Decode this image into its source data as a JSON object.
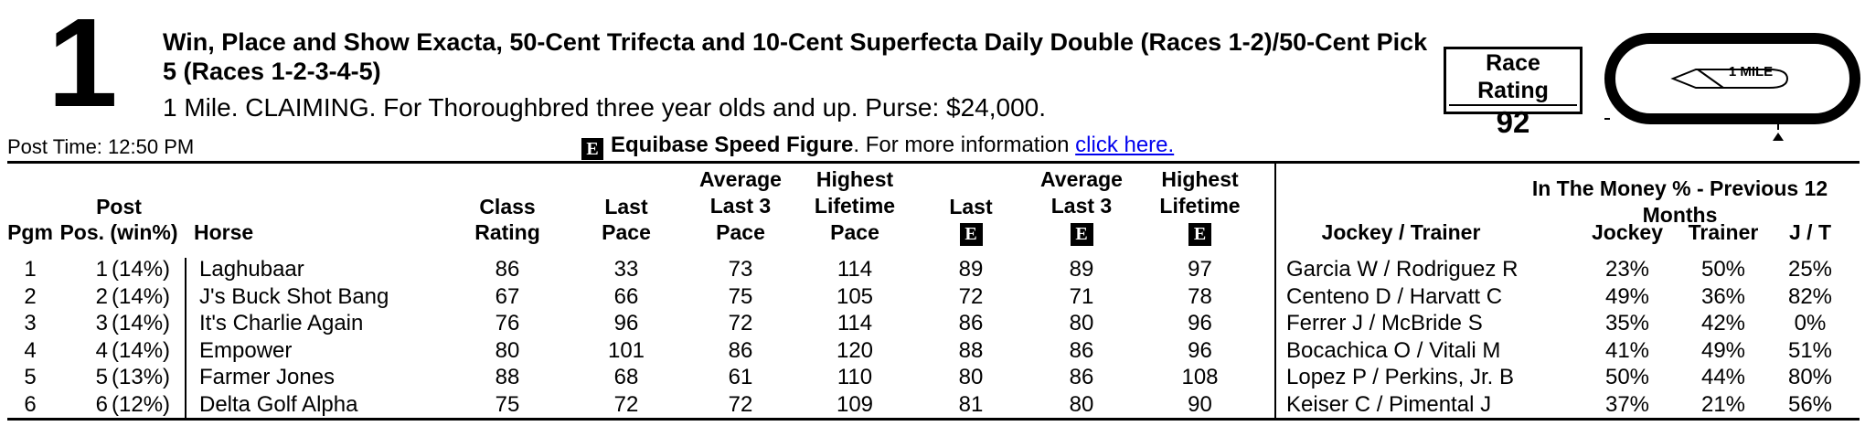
{
  "race": {
    "number": "1",
    "title": "Win, Place and Show Exacta, 50-Cent Trifecta and 10-Cent Superfecta Daily Double (Races 1-2)/50-Cent Pick 5 (Races 1-2-3-4-5)",
    "conditions": "1 Mile. CLAIMING. For Thoroughbred three year olds and up. Purse: $24,000.",
    "post_time": "Post Time: 12:50 PM",
    "rating_label": "Race Rating",
    "rating_value": "92",
    "track_label": "1 MILE"
  },
  "speed_figure": {
    "icon": "E",
    "title": "Equibase Speed Figure",
    "text": ". For more information ",
    "link": "click here."
  },
  "headers": {
    "pgm": "Pgm",
    "post_line1": "Post",
    "post_line2": "Pos. (win%)",
    "horse": "Horse",
    "class_line1": "Class",
    "class_line2": "Rating",
    "lastpace_line1": "Last",
    "lastpace_line2": "Pace",
    "avgpace_line1": "Average",
    "avgpace_line2": "Last 3",
    "avgpace_line3": "Pace",
    "highpace_line1": "Highest",
    "highpace_line2": "Lifetime",
    "highpace_line3": "Pace",
    "laste_line1": "Last",
    "avge_line1": "Average",
    "avge_line2": "Last 3",
    "highe_line1": "Highest",
    "highe_line2": "Lifetime",
    "e_icon": "E",
    "itm": "In The Money % - Previous 12 Months",
    "jockey_trainer": "Jockey / Trainer",
    "jockey": "Jockey",
    "trainer": "Trainer",
    "jt": "J / T"
  },
  "entries": [
    {
      "pgm": "1",
      "pp": "1",
      "win": "(14%)",
      "horse": "Laghubaar",
      "class": "86",
      "last_pace": "33",
      "avg_pace": "73",
      "high_pace": "114",
      "last_e": "89",
      "avg_e": "89",
      "high_e": "97",
      "jt": "Garcia W / Rodriguez R",
      "jockey_pct": "23%",
      "trainer_pct": "50%",
      "jt_pct": "25%"
    },
    {
      "pgm": "2",
      "pp": "2",
      "win": "(14%)",
      "horse": "J's Buck Shot Bang",
      "class": "67",
      "last_pace": "66",
      "avg_pace": "75",
      "high_pace": "105",
      "last_e": "72",
      "avg_e": "71",
      "high_e": "78",
      "jt": "Centeno D / Harvatt C",
      "jockey_pct": "49%",
      "trainer_pct": "36%",
      "jt_pct": "82%"
    },
    {
      "pgm": "3",
      "pp": "3",
      "win": "(14%)",
      "horse": "It's Charlie Again",
      "class": "76",
      "last_pace": "96",
      "avg_pace": "72",
      "high_pace": "114",
      "last_e": "86",
      "avg_e": "80",
      "high_e": "96",
      "jt": "Ferrer J / McBride S",
      "jockey_pct": "35%",
      "trainer_pct": "42%",
      "jt_pct": "0%"
    },
    {
      "pgm": "4",
      "pp": "4",
      "win": "(14%)",
      "horse": "Empower",
      "class": "80",
      "last_pace": "101",
      "avg_pace": "86",
      "high_pace": "120",
      "last_e": "88",
      "avg_e": "86",
      "high_e": "96",
      "jt": "Bocachica O / Vitali M",
      "jockey_pct": "41%",
      "trainer_pct": "49%",
      "jt_pct": "51%"
    },
    {
      "pgm": "5",
      "pp": "5",
      "win": "(13%)",
      "horse": "Farmer Jones",
      "class": "88",
      "last_pace": "68",
      "avg_pace": "61",
      "high_pace": "110",
      "last_e": "80",
      "avg_e": "86",
      "high_e": "108",
      "jt": "Lopez P / Perkins, Jr. B",
      "jockey_pct": "50%",
      "trainer_pct": "44%",
      "jt_pct": "80%"
    },
    {
      "pgm": "6",
      "pp": "6",
      "win": "(12%)",
      "horse": "Delta Golf Alpha",
      "class": "75",
      "last_pace": "72",
      "avg_pace": "72",
      "high_pace": "109",
      "last_e": "81",
      "avg_e": "80",
      "high_e": "90",
      "jt": "Keiser C / Pimental J",
      "jockey_pct": "37%",
      "trainer_pct": "21%",
      "jt_pct": "56%"
    }
  ]
}
